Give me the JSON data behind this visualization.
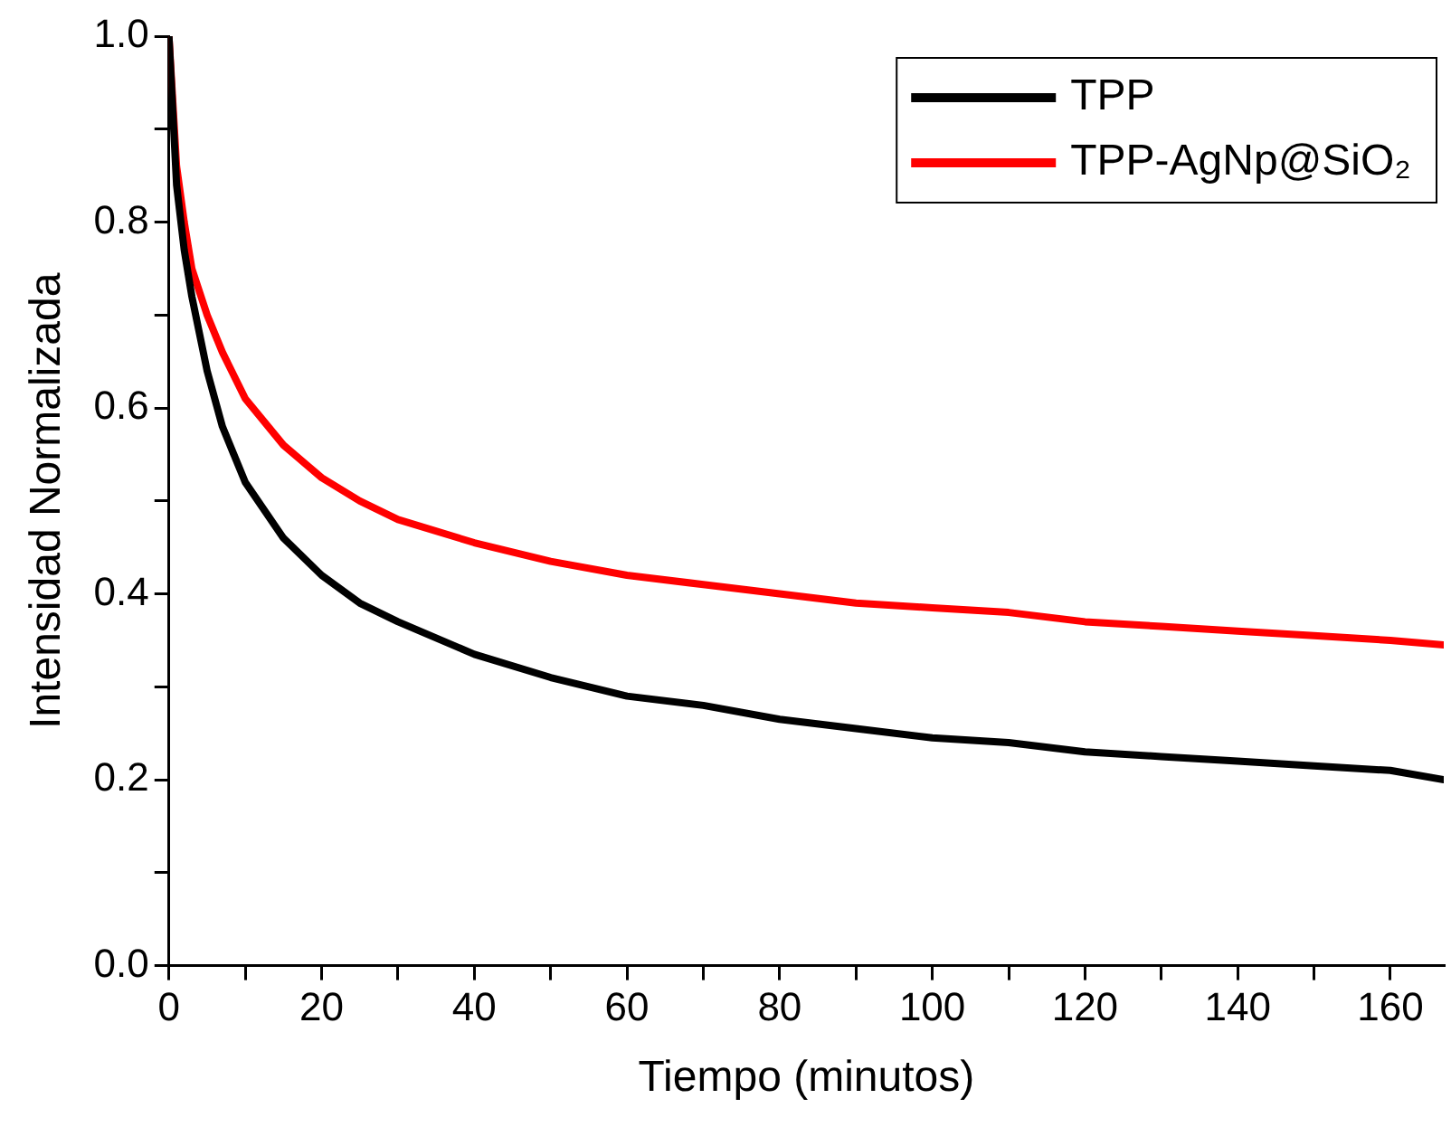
{
  "chart_data": {
    "type": "line",
    "xlabel": "Tiempo (minutos)",
    "ylabel": "Intensidad Normalizada",
    "xlim": [
      0,
      167
    ],
    "ylim": [
      0,
      1
    ],
    "xticks": [
      0,
      {
        "value": 10,
        "label": null
      },
      20,
      {
        "value": 30,
        "label": null
      },
      40,
      {
        "value": 50,
        "label": null
      },
      60,
      {
        "value": 70,
        "label": null
      },
      80,
      {
        "value": 90,
        "label": null
      },
      100,
      {
        "value": 110,
        "label": null
      },
      120,
      {
        "value": 130,
        "label": null
      },
      140,
      {
        "value": 150,
        "label": null
      },
      160
    ],
    "yticks": [
      {
        "value": 0,
        "label": "0.0"
      },
      {
        "value": 0.1,
        "label": null
      },
      0.2,
      {
        "value": 0.3,
        "label": null
      },
      0.4,
      {
        "value": 0.5,
        "label": null
      },
      0.6,
      {
        "value": 0.7,
        "label": null
      },
      0.8,
      {
        "value": 0.9,
        "label": null
      },
      {
        "value": 1,
        "label": "1.0"
      }
    ],
    "x": [
      0,
      1,
      2,
      3,
      5,
      7,
      10,
      15,
      20,
      25,
      30,
      40,
      50,
      60,
      70,
      80,
      90,
      100,
      110,
      120,
      130,
      140,
      150,
      160,
      167
    ],
    "grid": false,
    "legend": "top right",
    "marker": "none",
    "line_style": "solid",
    "series": [
      {
        "name": "TPP",
        "color": "#000000",
        "values": [
          1.0,
          0.84,
          0.77,
          0.72,
          0.64,
          0.58,
          0.52,
          0.46,
          0.42,
          0.39,
          0.37,
          0.335,
          0.31,
          0.29,
          0.28,
          0.265,
          0.255,
          0.245,
          0.24,
          0.23,
          0.225,
          0.22,
          0.215,
          0.21,
          0.2
        ]
      },
      {
        "name": "TPP-AgNp@SiO₂",
        "color": "#ff0000",
        "values": [
          1.0,
          0.86,
          0.8,
          0.75,
          0.7,
          0.66,
          0.61,
          0.56,
          0.525,
          0.5,
          0.48,
          0.455,
          0.435,
          0.42,
          0.41,
          0.4,
          0.39,
          0.385,
          0.38,
          0.37,
          0.365,
          0.36,
          0.355,
          0.35,
          0.345
        ]
      }
    ]
  }
}
